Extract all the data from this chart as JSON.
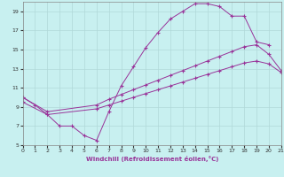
{
  "xlabel": "Windchill (Refroidissement éolien,°C)",
  "bg_color": "#c8f0f0",
  "grid_color": "#b0d8d8",
  "line_color": "#993399",
  "xlim": [
    0,
    21
  ],
  "ylim": [
    5,
    20
  ],
  "yticks": [
    5,
    7,
    9,
    11,
    13,
    15,
    17,
    19
  ],
  "xticks": [
    0,
    1,
    2,
    3,
    4,
    5,
    6,
    7,
    8,
    9,
    10,
    11,
    12,
    13,
    14,
    15,
    16,
    17,
    18,
    19,
    20,
    21
  ],
  "line1_x": [
    0,
    1,
    2,
    3,
    4,
    5,
    6,
    7,
    8,
    9,
    10,
    11,
    12,
    13,
    14,
    15,
    16,
    17,
    18,
    19,
    20
  ],
  "line1_y": [
    10.0,
    9.2,
    8.2,
    7.0,
    7.0,
    6.0,
    5.5,
    8.5,
    11.2,
    13.2,
    15.2,
    16.8,
    18.2,
    19.0,
    19.8,
    19.8,
    19.5,
    18.5,
    18.5,
    15.8,
    15.5
  ],
  "line2_x": [
    0,
    2,
    6,
    7,
    8,
    9,
    10,
    11,
    12,
    13,
    14,
    15,
    16,
    17,
    18,
    19,
    20,
    21
  ],
  "line2_y": [
    10.0,
    8.5,
    9.2,
    9.8,
    10.3,
    10.8,
    11.3,
    11.8,
    12.3,
    12.8,
    13.3,
    13.8,
    14.3,
    14.8,
    15.3,
    15.5,
    14.5,
    12.8
  ],
  "line3_x": [
    0,
    2,
    6,
    7,
    8,
    9,
    10,
    11,
    12,
    13,
    14,
    15,
    16,
    17,
    18,
    19,
    20,
    21
  ],
  "line3_y": [
    9.5,
    8.2,
    8.8,
    9.2,
    9.6,
    10.0,
    10.4,
    10.8,
    11.2,
    11.6,
    12.0,
    12.4,
    12.8,
    13.2,
    13.6,
    13.8,
    13.5,
    12.6
  ]
}
